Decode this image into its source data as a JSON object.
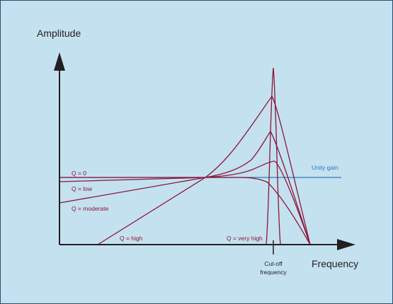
{
  "diagram": {
    "y_axis_label": "Amplitude",
    "x_axis_label": "Frequency",
    "cutoff_label_line1": "Cut-off",
    "cutoff_label_line2": "frequency",
    "unity_gain_label": "Unity gain",
    "curves": [
      {
        "id": "q0",
        "label": "Q = 0"
      },
      {
        "id": "qlow",
        "label": "Q = low"
      },
      {
        "id": "qmod",
        "label": "Q = moderate"
      },
      {
        "id": "qhigh",
        "label": "Q = high"
      },
      {
        "id": "qveryhigh",
        "label": "Q = very high"
      }
    ],
    "colors": {
      "background": "#c4e1f0",
      "border": "#2a4d6e",
      "axis": "#231f20",
      "curve": "#8c1538",
      "unity_gain": "#2a7bb8"
    }
  }
}
